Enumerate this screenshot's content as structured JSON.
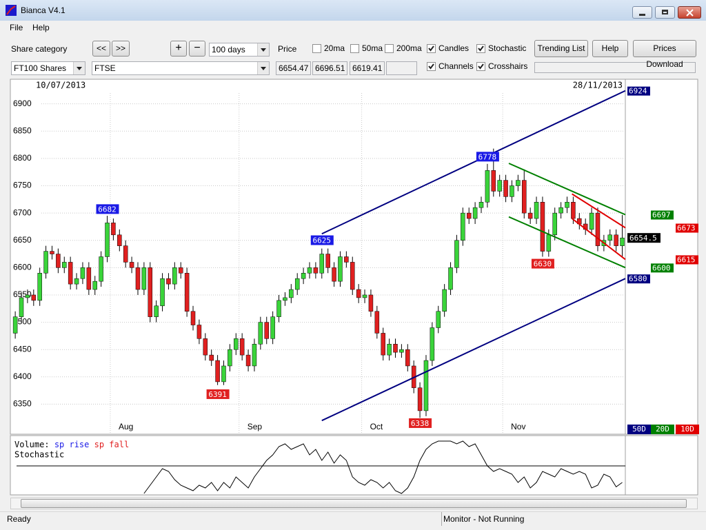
{
  "window": {
    "title": "Bianca V4.1"
  },
  "menu": [
    "File",
    "Help"
  ],
  "toolbar": {
    "share_category_label": "Share category",
    "prev": "<<",
    "next": ">>",
    "zoom_in": "+",
    "zoom_out": "−",
    "period": "100 days",
    "price_label": "Price",
    "category": "FT100 Shares",
    "share": "FTSE",
    "checkboxes": [
      {
        "label": "20ma",
        "checked": false
      },
      {
        "label": "50ma",
        "checked": false
      },
      {
        "label": "200ma",
        "checked": false
      },
      {
        "label": "Candles",
        "checked": true
      },
      {
        "label": "Stochastic",
        "checked": true
      },
      {
        "label": "Channels",
        "checked": true
      },
      {
        "label": "Crosshairs",
        "checked": true
      }
    ],
    "buttons": [
      "Trending List",
      "Help",
      "Prices Download"
    ]
  },
  "status": {
    "left": "Ready",
    "right": "Monitor - Not Running"
  },
  "chart_data": {
    "type": "candlestick",
    "start_date": "10/07/2013",
    "end_date": "28/11/2013",
    "xlim": [
      -0.8,
      99.5
    ],
    "ylim": [
      6295,
      6945
    ],
    "yticks": [
      6350,
      6400,
      6450,
      6500,
      6550,
      6600,
      6650,
      6700,
      6750,
      6800,
      6850,
      6900
    ],
    "xticks": [
      {
        "value": 15.5,
        "label": "Aug"
      },
      {
        "value": 36.5,
        "label": "Sep"
      },
      {
        "value": 56.5,
        "label": "Oct"
      },
      {
        "value": 79.5,
        "label": "Nov"
      }
    ],
    "grid": true,
    "up_color": "#3ad43a",
    "down_color": "#e02020",
    "open": [
      6480,
      6510,
      6545,
      6550,
      6540,
      6590,
      6630,
      6625,
      6600,
      6610,
      6570,
      6580,
      6600,
      6560,
      6575,
      6620,
      6682,
      6660,
      6640,
      6610,
      6600,
      6560,
      6600,
      6510,
      6530,
      6580,
      6570,
      6600,
      6590,
      6520,
      6495,
      6470,
      6440,
      6430,
      6391,
      6420,
      6450,
      6470,
      6440,
      6420,
      6460,
      6500,
      6470,
      6510,
      6540,
      6545,
      6560,
      6580,
      6590,
      6600,
      6590,
      6625,
      6600,
      6575,
      6620,
      6610,
      6560,
      6545,
      6550,
      6520,
      6480,
      6440,
      6460,
      6445,
      6450,
      6420,
      6380,
      6338,
      6430,
      6490,
      6520,
      6560,
      6600,
      6650,
      6700,
      6690,
      6710,
      6720,
      6778,
      6740,
      6760,
      6730,
      6750,
      6760,
      6700,
      6690,
      6720,
      6630,
      6660,
      6700,
      6710,
      6720,
      6690,
      6680,
      6670,
      6700,
      6640,
      6650,
      6660,
      6640
    ],
    "high": [
      6520,
      6555,
      6560,
      6560,
      6600,
      6640,
      6640,
      6635,
      6620,
      6620,
      6590,
      6610,
      6610,
      6585,
      6630,
      6695,
      6690,
      6670,
      6650,
      6620,
      6610,
      6610,
      6610,
      6540,
      6590,
      6590,
      6610,
      6610,
      6600,
      6530,
      6505,
      6480,
      6450,
      6440,
      6430,
      6460,
      6480,
      6480,
      6450,
      6470,
      6510,
      6510,
      6520,
      6550,
      6555,
      6570,
      6590,
      6600,
      6610,
      6610,
      6635,
      6635,
      6610,
      6630,
      6630,
      6620,
      6570,
      6560,
      6560,
      6530,
      6490,
      6470,
      6470,
      6460,
      6460,
      6430,
      6390,
      6440,
      6500,
      6530,
      6570,
      6610,
      6660,
      6710,
      6710,
      6720,
      6730,
      6790,
      6818,
      6770,
      6770,
      6760,
      6770,
      6780,
      6710,
      6730,
      6730,
      6670,
      6710,
      6720,
      6730,
      6730,
      6700,
      6690,
      6710,
      6710,
      6660,
      6670,
      6670,
      6696.51
    ],
    "low": [
      6470,
      6500,
      6535,
      6530,
      6530,
      6580,
      6615,
      6590,
      6590,
      6560,
      6560,
      6570,
      6550,
      6550,
      6565,
      6610,
      6650,
      6630,
      6600,
      6590,
      6550,
      6550,
      6500,
      6500,
      6520,
      6560,
      6560,
      6580,
      6510,
      6485,
      6460,
      6430,
      6420,
      6385,
      6385,
      6410,
      6440,
      6430,
      6410,
      6410,
      6450,
      6460,
      6460,
      6500,
      6530,
      6535,
      6550,
      6570,
      6580,
      6580,
      6580,
      6590,
      6565,
      6565,
      6600,
      6550,
      6535,
      6535,
      6510,
      6470,
      6430,
      6430,
      6435,
      6435,
      6410,
      6370,
      6325,
      6328,
      6420,
      6480,
      6510,
      6550,
      6590,
      6640,
      6680,
      6680,
      6700,
      6710,
      6730,
      6730,
      6720,
      6720,
      6740,
      6690,
      6680,
      6680,
      6620,
      6620,
      6650,
      6690,
      6700,
      6680,
      6670,
      6660,
      6660,
      6630,
      6630,
      6640,
      6630,
      6619.41
    ],
    "close": [
      6510,
      6545,
      6550,
      6540,
      6590,
      6630,
      6625,
      6600,
      6610,
      6570,
      6580,
      6600,
      6560,
      6575,
      6620,
      6682,
      6660,
      6640,
      6610,
      6600,
      6560,
      6600,
      6510,
      6530,
      6580,
      6570,
      6600,
      6590,
      6520,
      6495,
      6470,
      6440,
      6430,
      6391,
      6420,
      6450,
      6470,
      6440,
      6420,
      6460,
      6500,
      6470,
      6510,
      6540,
      6545,
      6560,
      6580,
      6590,
      6600,
      6590,
      6625,
      6600,
      6575,
      6620,
      6610,
      6560,
      6545,
      6550,
      6520,
      6480,
      6440,
      6460,
      6445,
      6450,
      6420,
      6380,
      6338,
      6430,
      6490,
      6520,
      6560,
      6600,
      6650,
      6700,
      6690,
      6710,
      6720,
      6778,
      6740,
      6760,
      6730,
      6750,
      6760,
      6700,
      6690,
      6720,
      6630,
      6660,
      6700,
      6710,
      6720,
      6690,
      6680,
      6670,
      6700,
      6640,
      6650,
      6660,
      6640,
      6654.47
    ],
    "last_price": {
      "value": 6654.47,
      "label": "6654.5"
    },
    "annotations": [
      {
        "x": 15,
        "value": 6682,
        "color": "#1a1ae6",
        "position": "above"
      },
      {
        "x": 33,
        "value": 6391,
        "color": "#e02020",
        "position": "below"
      },
      {
        "x": 50,
        "value": 6625,
        "color": "#1a1ae6",
        "position": "above"
      },
      {
        "x": 66,
        "value": 6338,
        "color": "#e02020",
        "position": "below"
      },
      {
        "x": 77,
        "value": 6778,
        "color": "#1a1ae6",
        "position": "above"
      },
      {
        "x": 86,
        "value": 6630,
        "color": "#e02020",
        "position": "below"
      }
    ],
    "channels": [
      {
        "name": "50D",
        "color": "#000080",
        "x": [
          50,
          99.5
        ],
        "upper": [
          6662,
          6924
        ],
        "lower": [
          6320,
          6580
        ]
      },
      {
        "name": "20D",
        "color": "#008000",
        "x": [
          80.5,
          99.5
        ],
        "upper": [
          6791,
          6697
        ],
        "lower": [
          6693,
          6600
        ]
      },
      {
        "name": "10D",
        "color": "#e00000",
        "x": [
          90.8,
          99.5
        ],
        "upper": [
          6735,
          6673
        ],
        "lower": [
          6690,
          6615
        ]
      }
    ],
    "lower_panel": {
      "volume_label": "Volume:",
      "rise_label": "sp rise",
      "fall_label": "sp fall",
      "stochastic_label": "Stochastic",
      "ylim": [
        0,
        100
      ],
      "reference": 50,
      "stochastic": [
        null,
        null,
        null,
        null,
        null,
        null,
        null,
        null,
        null,
        null,
        null,
        null,
        null,
        null,
        null,
        null,
        null,
        null,
        null,
        null,
        null,
        0,
        15,
        30,
        45,
        40,
        25,
        15,
        10,
        5,
        15,
        10,
        20,
        5,
        20,
        10,
        30,
        20,
        10,
        30,
        45,
        60,
        70,
        85,
        90,
        80,
        85,
        90,
        70,
        80,
        60,
        75,
        55,
        70,
        60,
        30,
        20,
        15,
        25,
        20,
        10,
        20,
        5,
        0,
        10,
        30,
        60,
        80,
        90,
        95,
        95,
        95,
        90,
        95,
        85,
        90,
        70,
        50,
        40,
        45,
        40,
        35,
        20,
        30,
        10,
        20,
        40,
        35,
        30,
        45,
        40,
        35,
        40,
        35,
        10,
        15,
        35,
        30,
        12,
        20
      ]
    }
  }
}
